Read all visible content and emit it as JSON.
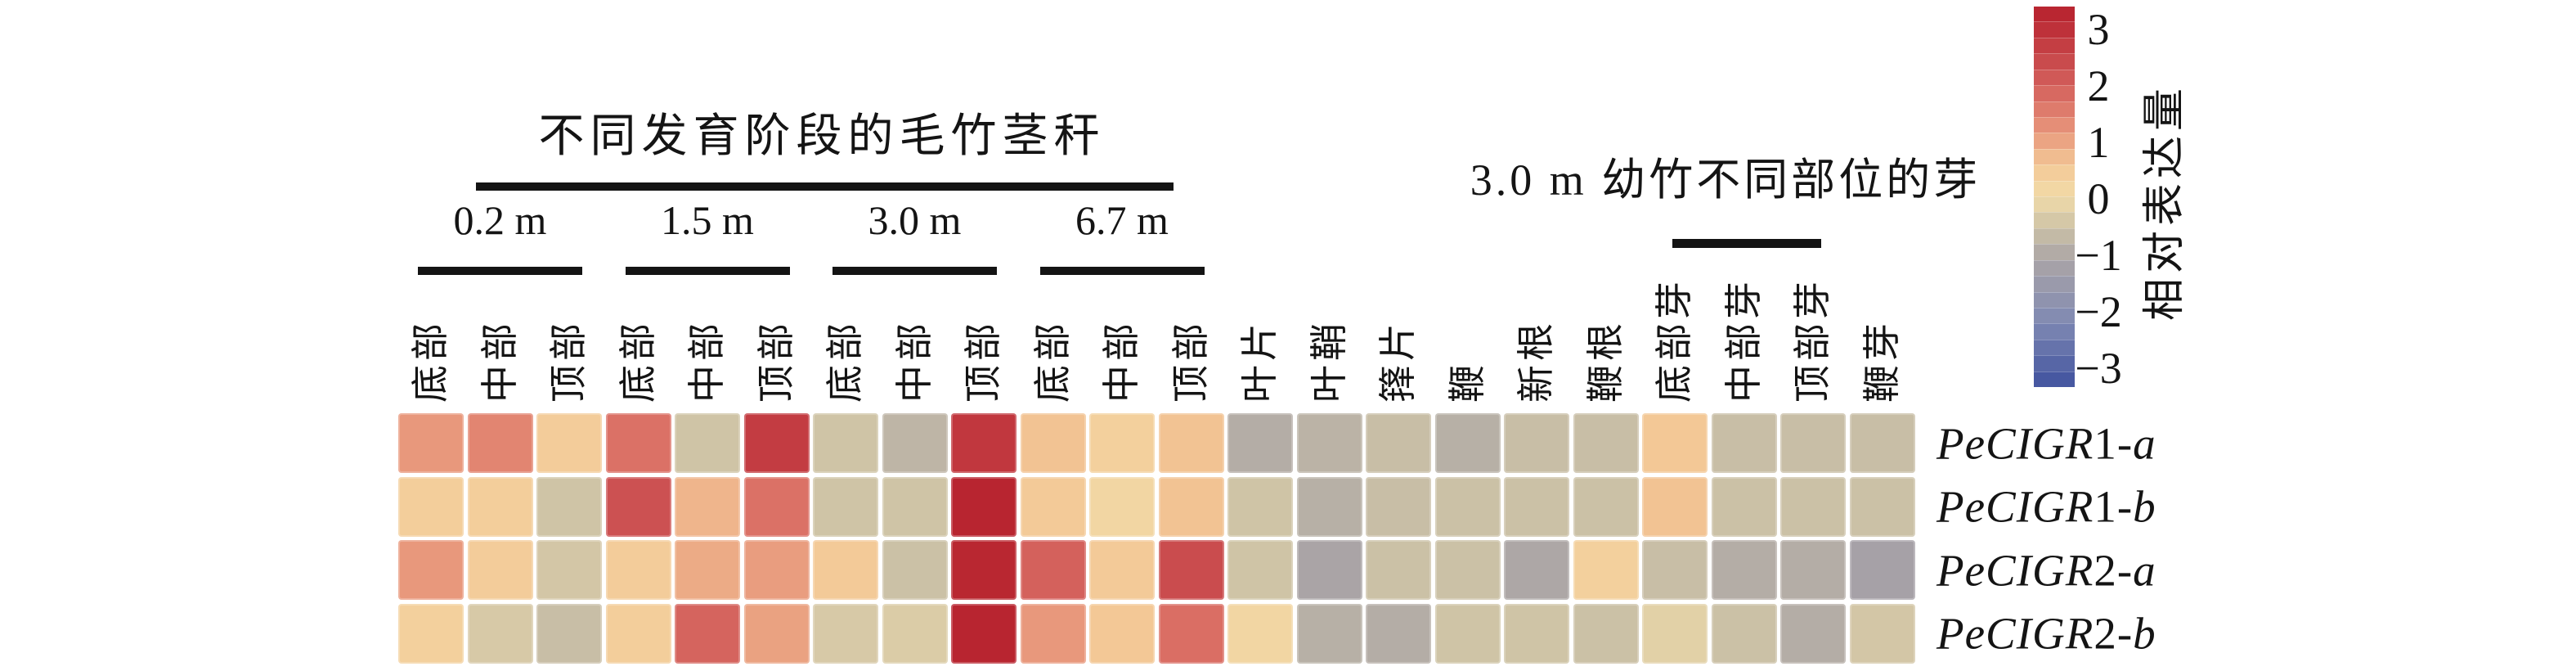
{
  "page": {
    "background": "#ffffff",
    "text_color": "#141414",
    "bar_color": "#141414"
  },
  "titles": {
    "culm_group": "不同发育阶段的毛竹茎秆",
    "bud_group": "3.0 m 幼竹不同部位的芽"
  },
  "chart_data": {
    "type": "heatmap",
    "columns": [
      "底部",
      "中部",
      "顶部",
      "底部",
      "中部",
      "顶部",
      "底部",
      "中部",
      "顶部",
      "底部",
      "中部",
      "顶部",
      "叶片",
      "叶鞘",
      "箨片",
      "鞭",
      "新根",
      "鞭根",
      "底部芽",
      "中部芽",
      "顶部芽",
      "鞭芽"
    ],
    "column_groups": {
      "culm": {
        "title": "不同发育阶段的毛竹茎秆",
        "subgroups": [
          {
            "label": "0.2 m",
            "start": 0,
            "end": 2
          },
          {
            "label": "1.5 m",
            "start": 3,
            "end": 5
          },
          {
            "label": "3.0 m",
            "start": 6,
            "end": 8
          },
          {
            "label": "6.7 m",
            "start": 9,
            "end": 11
          }
        ]
      },
      "bud": {
        "title": "3.0 m 幼竹不同部位的芽",
        "start": 18,
        "end": 20
      }
    },
    "rows": [
      {
        "name": "PeCIGR1-a",
        "prefix": "PeCIGR",
        "number": "1",
        "suffix": "-a"
      },
      {
        "name": "PeCIGR1-b",
        "prefix": "PeCIGR",
        "number": "1",
        "suffix": "-b"
      },
      {
        "name": "PeCIGR2-a",
        "prefix": "PeCIGR",
        "number": "2",
        "suffix": "-a"
      },
      {
        "name": "PeCIGR2-b",
        "prefix": "PeCIGR",
        "number": "2",
        "suffix": "-b"
      }
    ],
    "values": [
      [
        1.0,
        1.25,
        0.4,
        1.5,
        -0.45,
        2.4,
        -0.45,
        -0.7,
        2.5,
        0.55,
        0.3,
        0.55,
        -0.85,
        -0.75,
        -0.55,
        -0.8,
        -0.55,
        -0.55,
        0.5,
        -0.55,
        -0.55,
        -0.55
      ],
      [
        0.35,
        0.35,
        -0.45,
        2.0,
        0.7,
        1.5,
        -0.45,
        -0.45,
        2.9,
        0.45,
        0.15,
        0.55,
        -0.45,
        -0.8,
        -0.55,
        -0.5,
        -0.5,
        -0.5,
        0.55,
        -0.5,
        -0.5,
        -0.5
      ],
      [
        1.0,
        0.4,
        -0.4,
        0.4,
        0.8,
        0.95,
        0.45,
        -0.5,
        2.85,
        1.75,
        0.45,
        2.1,
        -0.45,
        -1.0,
        -0.5,
        -0.5,
        -0.95,
        0.3,
        -0.55,
        -0.85,
        -0.85,
        -1.1
      ],
      [
        0.3,
        -0.35,
        -0.55,
        0.35,
        1.7,
        0.9,
        -0.35,
        -0.3,
        2.9,
        1.0,
        0.5,
        1.55,
        0.15,
        -0.8,
        -0.85,
        -0.45,
        -0.45,
        -0.5,
        -0.2,
        -0.5,
        -0.85,
        -0.4
      ]
    ],
    "colorbar": {
      "label": "相对表达量",
      "ticks": [
        "3",
        "2",
        "1",
        "0",
        "−1",
        "−2",
        "−3"
      ],
      "tick_values": [
        3,
        2,
        1,
        0,
        -1,
        -2,
        -3
      ],
      "min": -3,
      "max": 3,
      "segments": 24,
      "gradient_stops": [
        {
          "v": 3,
          "color": "#b6202c"
        },
        {
          "v": 2.5,
          "color": "#c1373e"
        },
        {
          "v": 2,
          "color": "#cc5152"
        },
        {
          "v": 1.5,
          "color": "#db7166"
        },
        {
          "v": 1,
          "color": "#e8987c"
        },
        {
          "v": 0.5,
          "color": "#f3c896"
        },
        {
          "v": 0,
          "color": "#f2dca8"
        },
        {
          "v": -0.5,
          "color": "#cbc1a6"
        },
        {
          "v": -1,
          "color": "#aaa4a6"
        },
        {
          "v": -2,
          "color": "#7e88b2"
        },
        {
          "v": -3,
          "color": "#3f519e"
        }
      ]
    }
  }
}
